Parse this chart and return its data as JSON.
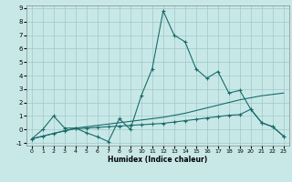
{
  "xlabel": "Humidex (Indice chaleur)",
  "xlim": [
    -0.5,
    23.5
  ],
  "ylim": [
    -1.2,
    9.2
  ],
  "xticks": [
    0,
    1,
    2,
    3,
    4,
    5,
    6,
    7,
    8,
    9,
    10,
    11,
    12,
    13,
    14,
    15,
    16,
    17,
    18,
    19,
    20,
    21,
    22,
    23
  ],
  "yticks": [
    -1,
    0,
    1,
    2,
    3,
    4,
    5,
    6,
    7,
    8,
    9
  ],
  "bg_color": "#c8e8e8",
  "line_color": "#1a6b6b",
  "grid_color": "#a0c8c8",
  "line1_x": [
    0,
    1,
    2,
    3,
    4,
    5,
    6,
    7,
    8,
    9,
    10,
    11,
    12,
    13,
    14,
    15,
    16,
    17,
    18,
    19,
    20,
    21,
    22,
    23
  ],
  "line1_y": [
    -0.7,
    0.0,
    1.0,
    0.1,
    0.1,
    -0.25,
    -0.55,
    -0.9,
    0.8,
    0.0,
    2.5,
    4.5,
    8.8,
    7.0,
    6.5,
    4.5,
    3.8,
    4.3,
    2.7,
    2.9,
    1.5,
    0.5,
    0.2,
    -0.5
  ],
  "line2_x": [
    0,
    1,
    2,
    3,
    4,
    5,
    6,
    7,
    8,
    9,
    10,
    11,
    12,
    13,
    14,
    15,
    16,
    17,
    18,
    19,
    20,
    21,
    22,
    23
  ],
  "line2_y": [
    -0.7,
    -0.5,
    -0.3,
    -0.1,
    0.1,
    0.2,
    0.3,
    0.4,
    0.5,
    0.6,
    0.7,
    0.8,
    0.9,
    1.05,
    1.2,
    1.4,
    1.6,
    1.8,
    2.0,
    2.2,
    2.35,
    2.5,
    2.6,
    2.7
  ],
  "line3_x": [
    0,
    1,
    2,
    3,
    4,
    5,
    6,
    7,
    8,
    9,
    10,
    11,
    12,
    13,
    14,
    15,
    16,
    17,
    18,
    19,
    20,
    21,
    22,
    23
  ],
  "line3_y": [
    -0.7,
    -0.5,
    -0.3,
    -0.1,
    0.05,
    0.1,
    0.15,
    0.2,
    0.25,
    0.3,
    0.35,
    0.4,
    0.45,
    0.55,
    0.65,
    0.75,
    0.85,
    0.95,
    1.05,
    1.1,
    1.5,
    0.5,
    0.2,
    -0.5
  ]
}
